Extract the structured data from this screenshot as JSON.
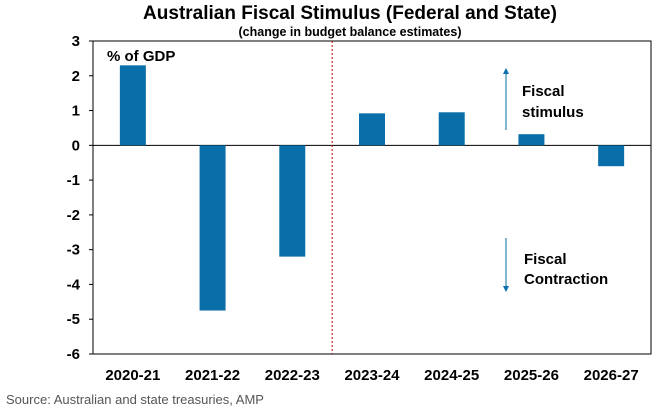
{
  "chart_data": {
    "type": "bar",
    "title": "Australian Fiscal Stimulus (Federal and State)",
    "subtitle": "(change in budget balance estimates)",
    "ylabel": "% of GDP",
    "xlabel": "",
    "categories": [
      "2020-21",
      "2021-22",
      "2022-23",
      "2023-24",
      "2024-25",
      "2025-26",
      "2026-27"
    ],
    "values": [
      2.3,
      -4.75,
      -3.2,
      0.92,
      0.95,
      0.32,
      -0.6
    ],
    "ylim": [
      -6,
      3
    ],
    "yticks": [
      "3",
      "2",
      "1",
      "0",
      "-1",
      "-2",
      "-3",
      "-4",
      "-5",
      "-6"
    ],
    "grid": false,
    "divider_after_category": "2022-23",
    "annotations": {
      "stimulus": [
        "Fiscal",
        "stimulus"
      ],
      "contraction": [
        "Fiscal",
        "Contraction"
      ]
    },
    "colors": {
      "bar": "#0a6fa8",
      "divider": "#c00000",
      "axis": "#000000",
      "arrow": "#0a6fa8"
    }
  },
  "source": "Source: Australian and state treasuries, AMP"
}
